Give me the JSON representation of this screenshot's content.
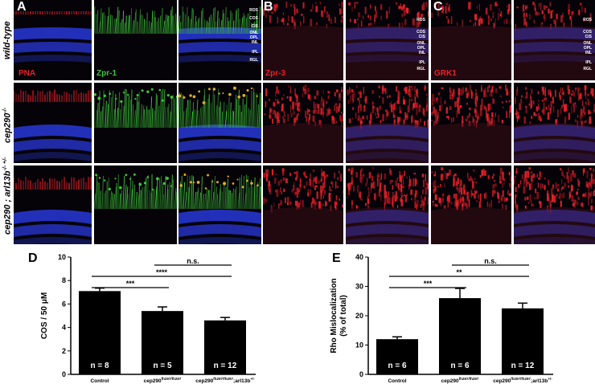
{
  "panel_labels": {
    "A": "A",
    "B": "B",
    "C": "C",
    "D": "D",
    "E": "E"
  },
  "row_labels": [
    "wild-type",
    "cep290",
    "cep290  ; arl13b"
  ],
  "row_labels_sup": [
    "",
    "-/-",
    "-/-  +/-"
  ],
  "stains": {
    "pna": "PNA",
    "zpr1": "Zpr-1",
    "zpr3": "Zpr-3",
    "grk1": "GRK1"
  },
  "layers": [
    "ROS",
    "COS",
    "CIS",
    "ONL",
    "OPL",
    "INL",
    "IPL",
    "RGL"
  ],
  "colors": {
    "red": "#e8202a",
    "green": "#3ec83a",
    "blue": "#2838d8",
    "bar": "#000000"
  },
  "chart_data": [
    {
      "type": "bar",
      "ylabel": "COS / 50 μM",
      "ylim": [
        0,
        10
      ],
      "yticks": [
        0,
        2,
        4,
        6,
        8,
        10
      ],
      "categories": [
        "Control",
        "cep290",
        "cep290"
      ],
      "category_sup": [
        "",
        "fh297/fh297",
        "fh297/fh297"
      ],
      "category_suffix": [
        "",
        "",
        ";arl13b"
      ],
      "category_suffix_sup": [
        "",
        "",
        "+/-"
      ],
      "values": [
        7.1,
        5.4,
        4.6
      ],
      "errors": [
        0.25,
        0.35,
        0.25
      ],
      "n_labels": [
        "n = 8",
        "n = 5",
        "n = 12"
      ],
      "significance": [
        {
          "from": 0,
          "to": 1,
          "label": "***"
        },
        {
          "from": 0,
          "to": 2,
          "label": "****"
        },
        {
          "from": 1,
          "to": 2,
          "label": "n.s."
        }
      ]
    },
    {
      "type": "bar",
      "ylabel": "Rho Mislocalization",
      "ylabel2": "(% of total)",
      "ylim": [
        0,
        40
      ],
      "yticks": [
        0,
        10,
        20,
        30,
        40
      ],
      "categories": [
        "Control",
        "cep290",
        "cep290"
      ],
      "category_sup": [
        "",
        "fh297/fh297",
        "fh297/fh297"
      ],
      "category_suffix": [
        "",
        "",
        ";arl13b"
      ],
      "category_suffix_sup": [
        "",
        "",
        "+/-"
      ],
      "values": [
        12,
        26,
        22.5
      ],
      "errors": [
        0.8,
        3.3,
        1.8
      ],
      "n_labels": [
        "n = 6",
        "n = 6",
        "n = 12"
      ],
      "significance": [
        {
          "from": 0,
          "to": 1,
          "label": "***"
        },
        {
          "from": 0,
          "to": 2,
          "label": "**"
        },
        {
          "from": 1,
          "to": 2,
          "label": "n.s."
        }
      ]
    }
  ]
}
